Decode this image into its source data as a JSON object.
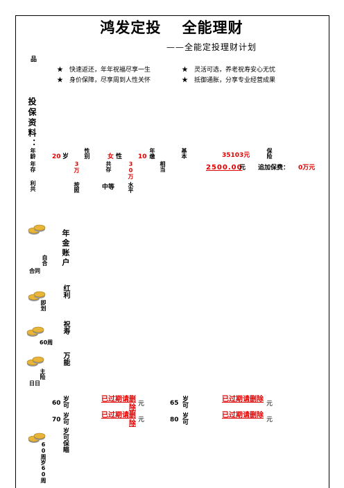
{
  "header": {
    "title": "鸿发定投　 全能理财",
    "subtitle": "——全能定投理财计划"
  },
  "product": {
    "label": "品",
    "features": [
      "★　快速返还，年年祝福尽享一生",
      "★　灵活可选，养老祝寿安心无忧",
      "★　身价保障，尽享周到人性关怀",
      "★　抵御通胀，分享专业经营成果"
    ]
  },
  "insured": {
    "section_label": "投保资料：",
    "age_label": "年龄",
    "age_value": "20",
    "age_unit": "岁",
    "gender_label": "性别",
    "gender_value": "女",
    "gender_suffix": "性",
    "term_value": "10",
    "term_label": "年缴",
    "basic_label": "基本",
    "premium_value": "35103元",
    "insurance_label": "保险",
    "annual_label": "年存",
    "annual_value": "3万",
    "total_label": "共存",
    "total_value": "30万",
    "equiv_label": "相当",
    "monthly_value": "2500.00",
    "monthly_unit": "元",
    "extra_label": "追加保费：",
    "extra_value": "0万元",
    "interest_label": "利共",
    "assume_label": "按照",
    "level_value": "中等",
    "level_suffix": "水平"
  },
  "benefits": {
    "annuity_title": "年金账户",
    "auto_label": "自合",
    "contract_label": "合同",
    "dividend_title": "红利",
    "plan_label": "即划",
    "blessing_title": "祝寿",
    "sixty_label": "60周",
    "universal_title": "万能",
    "master_label": "主险",
    "day_label": "日日",
    "guarantee_title": "岁可保瞄",
    "anniv_label": "60周岁60周"
  },
  "table": {
    "rows": [
      {
        "age_left": "60",
        "unit_left": "岁可",
        "value_left": "已过期请删除",
        "yuan_left": "元",
        "age_right": "65",
        "unit_right": "岁可",
        "value_right": "已过期请删除",
        "yuan_right": "元"
      },
      {
        "age_left": "70",
        "unit_left": "岁可",
        "value_left": "已过期请删除",
        "yuan_left": "元",
        "age_right": "80",
        "unit_right": "岁可",
        "value_right": "已过期请删除",
        "yuan_right": "元"
      }
    ]
  },
  "colors": {
    "accent": "#e00000",
    "icon_gold": "#e8b53a",
    "icon_gray": "#9a9a9a"
  },
  "icons": [
    "coins-icon"
  ]
}
